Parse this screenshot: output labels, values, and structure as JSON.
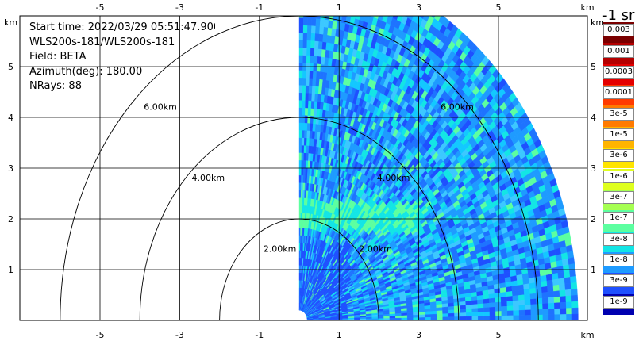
{
  "info": {
    "start_time": "Start time: 2022/03/29 05:51:47.900",
    "instrument": "WLS200s-181/WLS200s-181",
    "field": "Field: BETA",
    "azimuth": "Azimuth(deg): 180.00",
    "nrays": "NRays: 88"
  },
  "axes": {
    "unit_label": "km",
    "x_ticks": [
      "-5",
      "-3",
      "-1",
      "1",
      "3",
      "5"
    ],
    "y_ticks": [
      "1",
      "2",
      "3",
      "4",
      "5"
    ]
  },
  "range_rings": [
    "2.00km",
    "4.00km",
    "6.00km"
  ],
  "colorbar": {
    "title": "-1 sr",
    "unit_label": "km",
    "labels": [
      "0.003",
      "0.001",
      "0.0003",
      "0.0001",
      "3e-5",
      "1e-5",
      "3e-6",
      "1e-6",
      "3e-7",
      "1e-7",
      "3e-8",
      "1e-8",
      "3e-9",
      "1e-9"
    ],
    "colors": [
      "#7a0000",
      "#b40000",
      "#e40000",
      "#ff3a00",
      "#ff7a00",
      "#ffb400",
      "#ffe400",
      "#dfff1f",
      "#a6ff52",
      "#5cffa0",
      "#13e5e5",
      "#1e9bff",
      "#1e50ff",
      "#0000b0"
    ]
  }
}
